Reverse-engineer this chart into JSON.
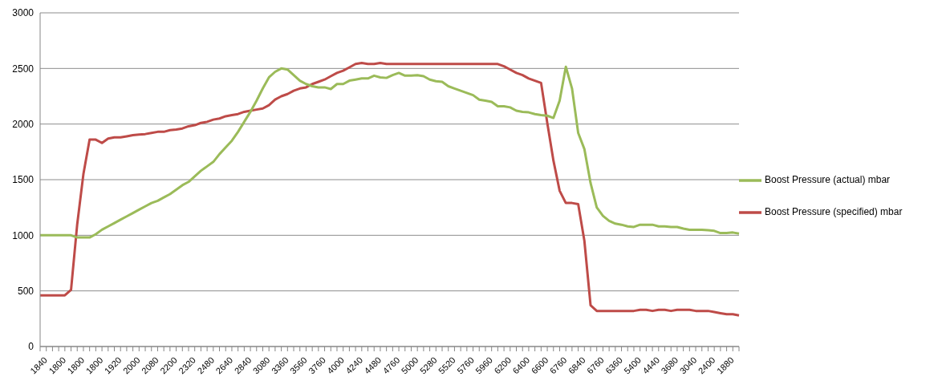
{
  "chart_data": {
    "type": "line",
    "categories": [
      "1840",
      null,
      null,
      "1800",
      null,
      null,
      "1800",
      null,
      null,
      "1800",
      null,
      null,
      "1920",
      null,
      null,
      "2000",
      null,
      null,
      "2080",
      null,
      null,
      "2200",
      null,
      null,
      "2320",
      null,
      null,
      "2480",
      null,
      null,
      "2640",
      null,
      null,
      "2840",
      null,
      null,
      "3080",
      null,
      null,
      "3360",
      null,
      null,
      "3560",
      null,
      null,
      "3760",
      null,
      null,
      "4000",
      null,
      null,
      "4240",
      null,
      null,
      "4480",
      null,
      null,
      "4760",
      null,
      null,
      "5000",
      null,
      null,
      "5280",
      null,
      null,
      "5520",
      null,
      null,
      "5760",
      null,
      null,
      "5960",
      null,
      null,
      "6200",
      null,
      null,
      "6400",
      null,
      null,
      "6600",
      null,
      null,
      "6760",
      null,
      null,
      "6840",
      null,
      null,
      "6760",
      null,
      null,
      "6360",
      null,
      null,
      "5400",
      null,
      null,
      "4440",
      null,
      null,
      "3680",
      null,
      null,
      "3040",
      null,
      null,
      "2400",
      null,
      null,
      "1880",
      null,
      null
    ],
    "series": [
      {
        "name": "Boost Pressure (specified)  mbar",
        "color": "#be4b48",
        "values": [
          460,
          460,
          460,
          460,
          460,
          510,
          1100,
          1550,
          1860,
          1860,
          1830,
          1870,
          1880,
          1880,
          1890,
          1900,
          1905,
          1910,
          1920,
          1930,
          1930,
          1945,
          1950,
          1960,
          1980,
          1990,
          2010,
          2020,
          2040,
          2050,
          2070,
          2080,
          2090,
          2110,
          2120,
          2130,
          2140,
          2170,
          2220,
          2250,
          2270,
          2300,
          2320,
          2330,
          2360,
          2380,
          2400,
          2430,
          2460,
          2480,
          2510,
          2540,
          2550,
          2540,
          2540,
          2550,
          2540,
          2540,
          2540,
          2540,
          2540,
          2540,
          2540,
          2540,
          2540,
          2540,
          2540,
          2540,
          2540,
          2540,
          2540,
          2540,
          2540,
          2540,
          2540,
          2520,
          2490,
          2460,
          2440,
          2410,
          2390,
          2370,
          2010,
          1670,
          1400,
          1290,
          1290,
          1280,
          950,
          370,
          320,
          320,
          320,
          320,
          320,
          320,
          320,
          330,
          330,
          320,
          330,
          330,
          320,
          330,
          330,
          330,
          320,
          320,
          320,
          310,
          300,
          290,
          290,
          280
        ]
      },
      {
        "name": "Boost Pressure (actual)  mbar",
        "color": "#9bbb59",
        "values": [
          1000,
          1000,
          1000,
          1000,
          1000,
          1000,
          980,
          980,
          980,
          1010,
          1050,
          1080,
          1110,
          1140,
          1170,
          1200,
          1230,
          1260,
          1290,
          1310,
          1340,
          1370,
          1410,
          1450,
          1480,
          1530,
          1580,
          1620,
          1660,
          1730,
          1790,
          1850,
          1930,
          2020,
          2110,
          2210,
          2320,
          2420,
          2470,
          2500,
          2490,
          2440,
          2390,
          2360,
          2340,
          2330,
          2330,
          2315,
          2360,
          2360,
          2390,
          2400,
          2410,
          2410,
          2435,
          2420,
          2415,
          2440,
          2460,
          2435,
          2435,
          2440,
          2430,
          2400,
          2385,
          2380,
          2340,
          2320,
          2300,
          2280,
          2260,
          2220,
          2210,
          2200,
          2160,
          2160,
          2150,
          2120,
          2110,
          2105,
          2090,
          2080,
          2075,
          2055,
          2210,
          2515,
          2320,
          1920,
          1775,
          1470,
          1250,
          1175,
          1130,
          1105,
          1095,
          1080,
          1075,
          1095,
          1095,
          1095,
          1080,
          1080,
          1075,
          1075,
          1060,
          1050,
          1050,
          1050,
          1045,
          1040,
          1020,
          1020,
          1025,
          1015
        ]
      }
    ],
    "ylim": [
      0,
      3000
    ],
    "yticks": [
      0,
      500,
      1000,
      1500,
      2000,
      2500,
      3000
    ],
    "grid": "y",
    "legend": "right",
    "marker": "none",
    "line_style": "solid"
  }
}
